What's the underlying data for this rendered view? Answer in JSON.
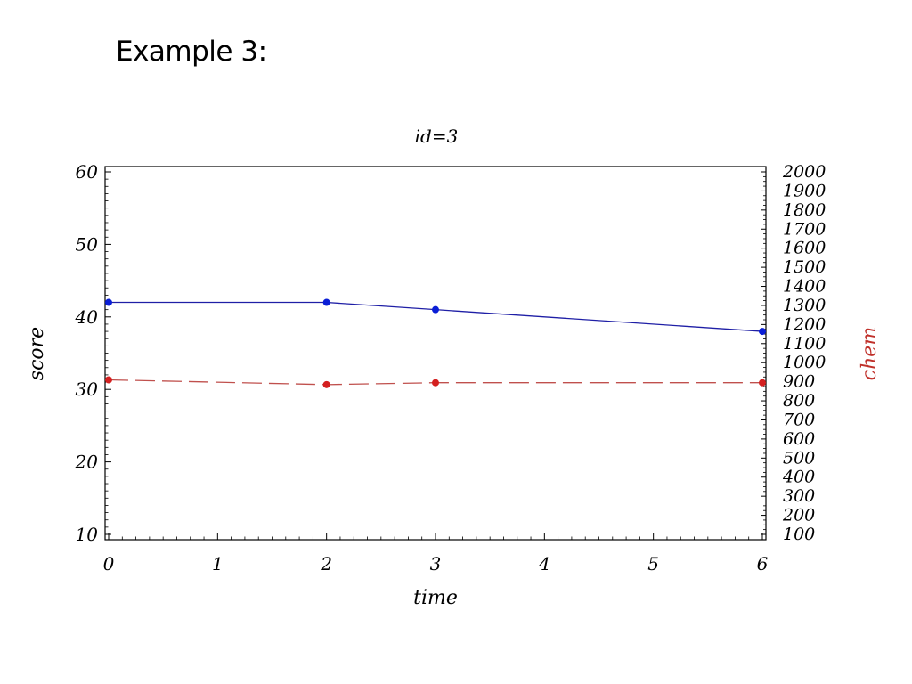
{
  "slide": {
    "title": "Example 3:"
  },
  "chart_data": {
    "type": "line",
    "title": "id=3",
    "xlabel": "time",
    "ylabel": "score",
    "y2label": "chem",
    "xlim": [
      0,
      6
    ],
    "ylim": [
      10,
      60
    ],
    "y2lim": [
      100,
      2000
    ],
    "x_ticks": [
      "0",
      "1",
      "2",
      "3",
      "4",
      "5",
      "6"
    ],
    "y_ticks": [
      "10",
      "20",
      "30",
      "40",
      "50",
      "60"
    ],
    "y2_ticks": [
      "100",
      "200",
      "300",
      "400",
      "500",
      "600",
      "700",
      "800",
      "900",
      "1000",
      "1100",
      "1200",
      "1300",
      "1400",
      "1500",
      "1600",
      "1700",
      "1800",
      "1900",
      "2000"
    ],
    "grid": false,
    "series": [
      {
        "axis": "left",
        "color": "#1f1fa6",
        "marker_color": "#0a1ed6",
        "line_style": "solid",
        "x": [
          0,
          2,
          3,
          6
        ],
        "values": [
          42,
          42,
          41,
          38
        ]
      },
      {
        "axis": "right",
        "color": "#c0504d",
        "marker_color": "#d42020",
        "line_style": "dashed",
        "x": [
          0,
          2,
          3,
          6
        ],
        "values": [
          910,
          885,
          895,
          895
        ]
      }
    ],
    "colors": {
      "y2label": "#c0302a",
      "axis": "#000000"
    }
  }
}
